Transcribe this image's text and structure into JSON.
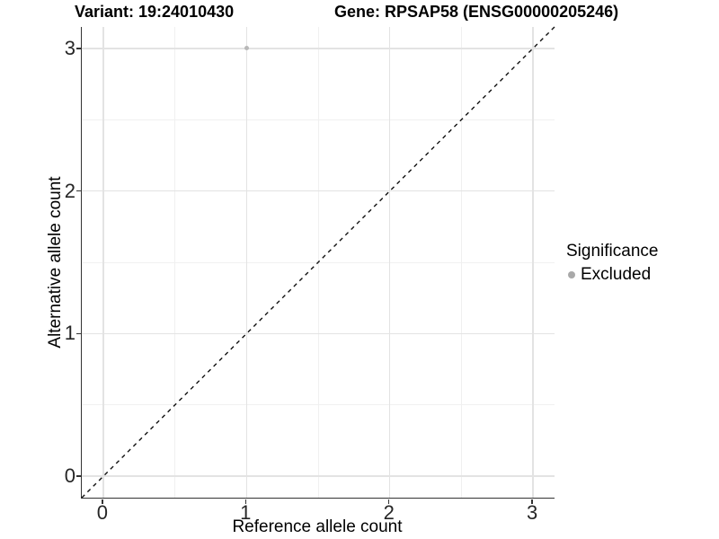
{
  "titles": {
    "left": "Variant: 19:24010430",
    "right": "Gene: RPSAP58 (ENSG00000205246)"
  },
  "chart_data": {
    "type": "scatter",
    "title_left": "Variant: 19:24010430",
    "title_right": "Gene: RPSAP58 (ENSG00000205246)",
    "xlabel": "Reference allele count",
    "ylabel": "Alternative allele count",
    "xlim": [
      -0.15,
      3.15
    ],
    "ylim": [
      -0.15,
      3.15
    ],
    "xticks": [
      0,
      1,
      2,
      3
    ],
    "yticks": [
      0,
      1,
      2,
      3
    ],
    "x_minor_breaks": [
      0.5,
      1.5,
      2.5
    ],
    "y_minor_breaks": [
      0.5,
      1.5,
      2.5
    ],
    "grid": true,
    "points": [
      {
        "x": 1,
        "y": 3,
        "series": "Excluded"
      }
    ],
    "point_radius": 2.6,
    "reference_line": {
      "type": "identity",
      "equation": "y = x",
      "style": "dashed",
      "color": "#111111"
    },
    "legend": {
      "title": "Significance",
      "position": "right",
      "items": [
        {
          "label": "Excluded",
          "color": "#a9a9a9"
        }
      ]
    },
    "colors": {
      "point": "#b8b8b8",
      "grid_major": "#e3e3e3",
      "grid_minor": "#f0f0f0",
      "axis_line": "#333333",
      "background": "#ffffff"
    }
  }
}
